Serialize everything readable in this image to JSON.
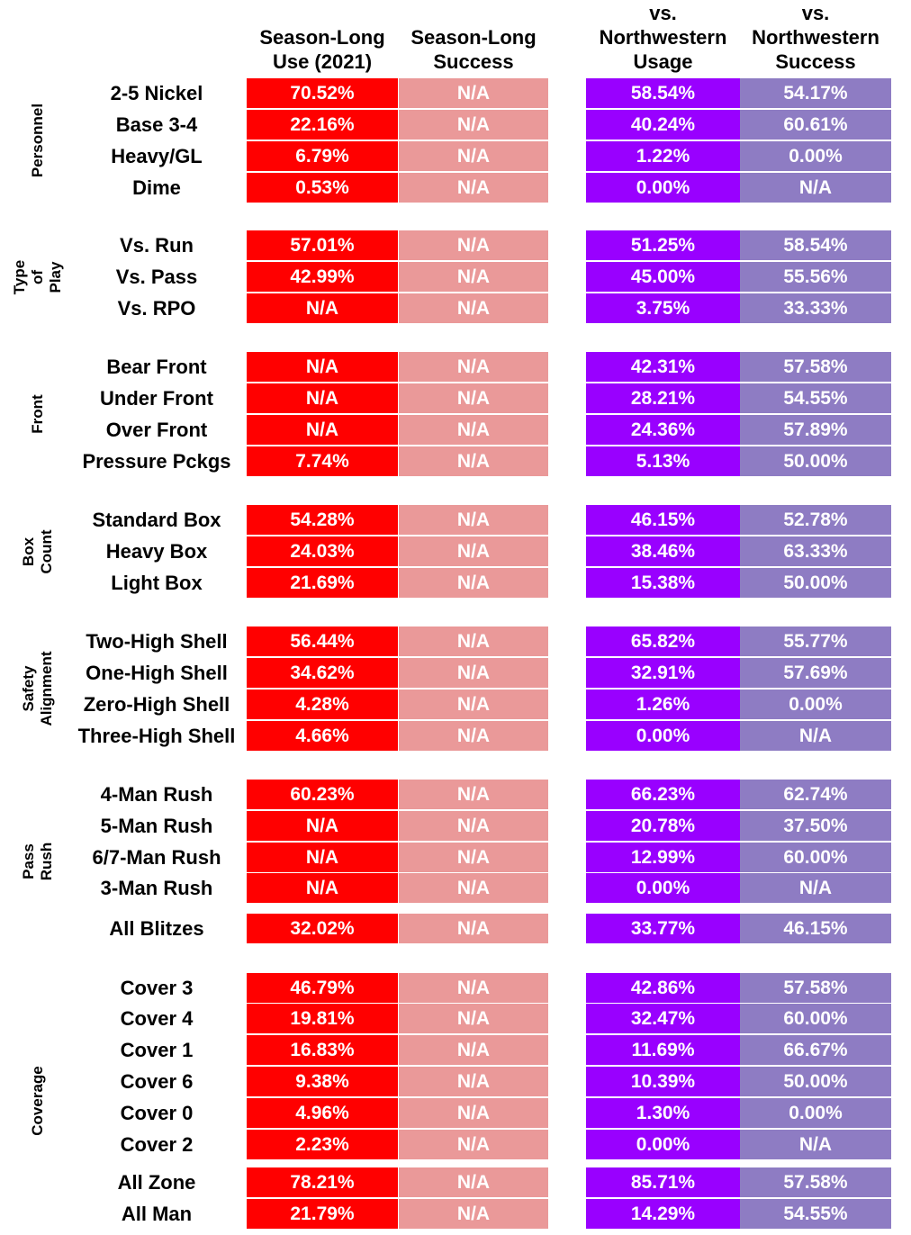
{
  "headers": [
    "Season-Long\nUse (2021)",
    "Season-Long\nSuccess",
    "vs.\nNorthwestern\nUsage",
    "vs.\nNorthwestern\nSuccess"
  ],
  "colors": {
    "season_use": "#ff0000",
    "season_success": "#ea9999",
    "nw_usage": "#9900ff",
    "nw_success": "#8e7cc3"
  },
  "groups": [
    {
      "label": "Personnel",
      "rows": [
        {
          "label": "2-5 Nickel",
          "values": [
            "70.52%",
            "N/A",
            "58.54%",
            "54.17%"
          ]
        },
        {
          "label": "Base 3-4",
          "values": [
            "22.16%",
            "N/A",
            "40.24%",
            "60.61%"
          ]
        },
        {
          "label": "Heavy/GL",
          "values": [
            "6.79%",
            "N/A",
            "1.22%",
            "0.00%"
          ]
        },
        {
          "label": "Dime",
          "values": [
            "0.53%",
            "N/A",
            "0.00%",
            "N/A"
          ]
        }
      ]
    },
    {
      "label": "Type of\nPlay",
      "rows": [
        {
          "label": "Vs. Run",
          "values": [
            "57.01%",
            "N/A",
            "51.25%",
            "58.54%"
          ]
        },
        {
          "label": "Vs. Pass",
          "values": [
            "42.99%",
            "N/A",
            "45.00%",
            "55.56%"
          ]
        },
        {
          "label": "Vs. RPO",
          "values": [
            "N/A",
            "N/A",
            "3.75%",
            "33.33%"
          ]
        }
      ]
    },
    {
      "label": "Front",
      "rows": [
        {
          "label": "Bear Front",
          "values": [
            "N/A",
            "N/A",
            "42.31%",
            "57.58%"
          ]
        },
        {
          "label": "Under Front",
          "values": [
            "N/A",
            "N/A",
            "28.21%",
            "54.55%"
          ]
        },
        {
          "label": "Over Front",
          "values": [
            "N/A",
            "N/A",
            "24.36%",
            "57.89%"
          ]
        },
        {
          "label": "Pressure Pckgs",
          "values": [
            "7.74%",
            "N/A",
            "5.13%",
            "50.00%"
          ]
        }
      ]
    },
    {
      "label": "Box\nCount",
      "rows": [
        {
          "label": "Standard Box",
          "values": [
            "54.28%",
            "N/A",
            "46.15%",
            "52.78%"
          ]
        },
        {
          "label": "Heavy Box",
          "values": [
            "24.03%",
            "N/A",
            "38.46%",
            "63.33%"
          ]
        },
        {
          "label": "Light Box",
          "values": [
            "21.69%",
            "N/A",
            "15.38%",
            "50.00%"
          ]
        }
      ]
    },
    {
      "label": "Safety\nAlignment",
      "rows": [
        {
          "label": "Two-High Shell",
          "values": [
            "56.44%",
            "N/A",
            "65.82%",
            "55.77%"
          ]
        },
        {
          "label": "One-High Shell",
          "values": [
            "34.62%",
            "N/A",
            "32.91%",
            "57.69%"
          ]
        },
        {
          "label": "Zero-High Shell",
          "values": [
            "4.28%",
            "N/A",
            "1.26%",
            "0.00%"
          ]
        },
        {
          "label": "Three-High Shell",
          "values": [
            "4.66%",
            "N/A",
            "0.00%",
            "N/A"
          ]
        }
      ]
    },
    {
      "label": "Pass Rush",
      "rows": [
        {
          "label": "4-Man Rush",
          "values": [
            "60.23%",
            "N/A",
            "66.23%",
            "62.74%"
          ]
        },
        {
          "label": "5-Man Rush",
          "values": [
            "N/A",
            "N/A",
            "20.78%",
            "37.50%"
          ]
        },
        {
          "label": "6/7-Man Rush",
          "values": [
            "N/A",
            "N/A",
            "12.99%",
            "60.00%"
          ]
        },
        {
          "label": "3-Man Rush",
          "values": [
            "N/A",
            "N/A",
            "0.00%",
            "N/A"
          ]
        },
        {
          "label": "All Blitzes",
          "values": [
            "32.02%",
            "N/A",
            "33.77%",
            "46.15%"
          ]
        }
      ]
    },
    {
      "label": "Coverage",
      "rows": [
        {
          "label": "Cover 3",
          "values": [
            "46.79%",
            "N/A",
            "42.86%",
            "57.58%"
          ]
        },
        {
          "label": "Cover 4",
          "values": [
            "19.81%",
            "N/A",
            "32.47%",
            "60.00%"
          ]
        },
        {
          "label": "Cover 1",
          "values": [
            "16.83%",
            "N/A",
            "11.69%",
            "66.67%"
          ]
        },
        {
          "label": "Cover 6",
          "values": [
            "9.38%",
            "N/A",
            "10.39%",
            "50.00%"
          ]
        },
        {
          "label": "Cover 0",
          "values": [
            "4.96%",
            "N/A",
            "1.30%",
            "0.00%"
          ]
        },
        {
          "label": "Cover 2",
          "values": [
            "2.23%",
            "N/A",
            "0.00%",
            "N/A"
          ]
        },
        {
          "label": "All Zone",
          "values": [
            "78.21%",
            "N/A",
            "85.71%",
            "57.58%"
          ]
        },
        {
          "label": "All Man",
          "values": [
            "21.79%",
            "N/A",
            "14.29%",
            "54.55%"
          ]
        }
      ]
    }
  ]
}
